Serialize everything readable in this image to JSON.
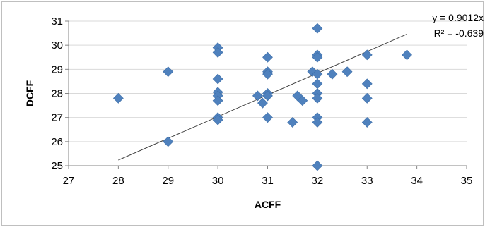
{
  "chart_data": {
    "type": "scatter",
    "title": "",
    "xlabel": "ACFF",
    "ylabel": "DCFF",
    "xlim": [
      27,
      35
    ],
    "ylim": [
      25,
      31
    ],
    "xticks": [
      27,
      28,
      29,
      30,
      31,
      32,
      33,
      34,
      35
    ],
    "yticks": [
      25,
      26,
      27,
      28,
      29,
      30,
      31
    ],
    "grid": "horizontal",
    "marker": "diamond",
    "marker_color": "#4f81bd",
    "trendline": {
      "type": "linear",
      "x_range": [
        28,
        33.8
      ],
      "slope": 0.9012,
      "color": "#404040"
    },
    "annotations": [
      "y = 0.9012x",
      "R² = -0.639"
    ],
    "points": [
      {
        "x": 28,
        "y": 27.8
      },
      {
        "x": 29,
        "y": 28.9
      },
      {
        "x": 29,
        "y": 26.0
      },
      {
        "x": 30,
        "y": 29.9
      },
      {
        "x": 30,
        "y": 29.7
      },
      {
        "x": 30,
        "y": 28.6
      },
      {
        "x": 30,
        "y": 28.05
      },
      {
        "x": 30,
        "y": 27.9
      },
      {
        "x": 30,
        "y": 27.7
      },
      {
        "x": 30,
        "y": 27.0
      },
      {
        "x": 30,
        "y": 26.9
      },
      {
        "x": 30.8,
        "y": 27.9
      },
      {
        "x": 30.9,
        "y": 27.6
      },
      {
        "x": 31,
        "y": 29.5
      },
      {
        "x": 31,
        "y": 28.9
      },
      {
        "x": 31,
        "y": 28.8
      },
      {
        "x": 31,
        "y": 28.0
      },
      {
        "x": 31,
        "y": 27.9
      },
      {
        "x": 31,
        "y": 27.0
      },
      {
        "x": 31.5,
        "y": 26.8
      },
      {
        "x": 31.6,
        "y": 27.9
      },
      {
        "x": 31.7,
        "y": 27.7
      },
      {
        "x": 31.9,
        "y": 28.9
      },
      {
        "x": 32,
        "y": 30.7
      },
      {
        "x": 32,
        "y": 29.6
      },
      {
        "x": 32,
        "y": 29.5
      },
      {
        "x": 32,
        "y": 28.8
      },
      {
        "x": 32,
        "y": 28.4
      },
      {
        "x": 32,
        "y": 28.0
      },
      {
        "x": 32,
        "y": 27.8
      },
      {
        "x": 32,
        "y": 27.0
      },
      {
        "x": 32,
        "y": 26.8
      },
      {
        "x": 32,
        "y": 25.0
      },
      {
        "x": 32.3,
        "y": 28.8
      },
      {
        "x": 32.6,
        "y": 28.9
      },
      {
        "x": 33,
        "y": 29.6
      },
      {
        "x": 33,
        "y": 28.4
      },
      {
        "x": 33,
        "y": 27.8
      },
      {
        "x": 33,
        "y": 26.8
      },
      {
        "x": 33.8,
        "y": 29.6
      }
    ]
  }
}
